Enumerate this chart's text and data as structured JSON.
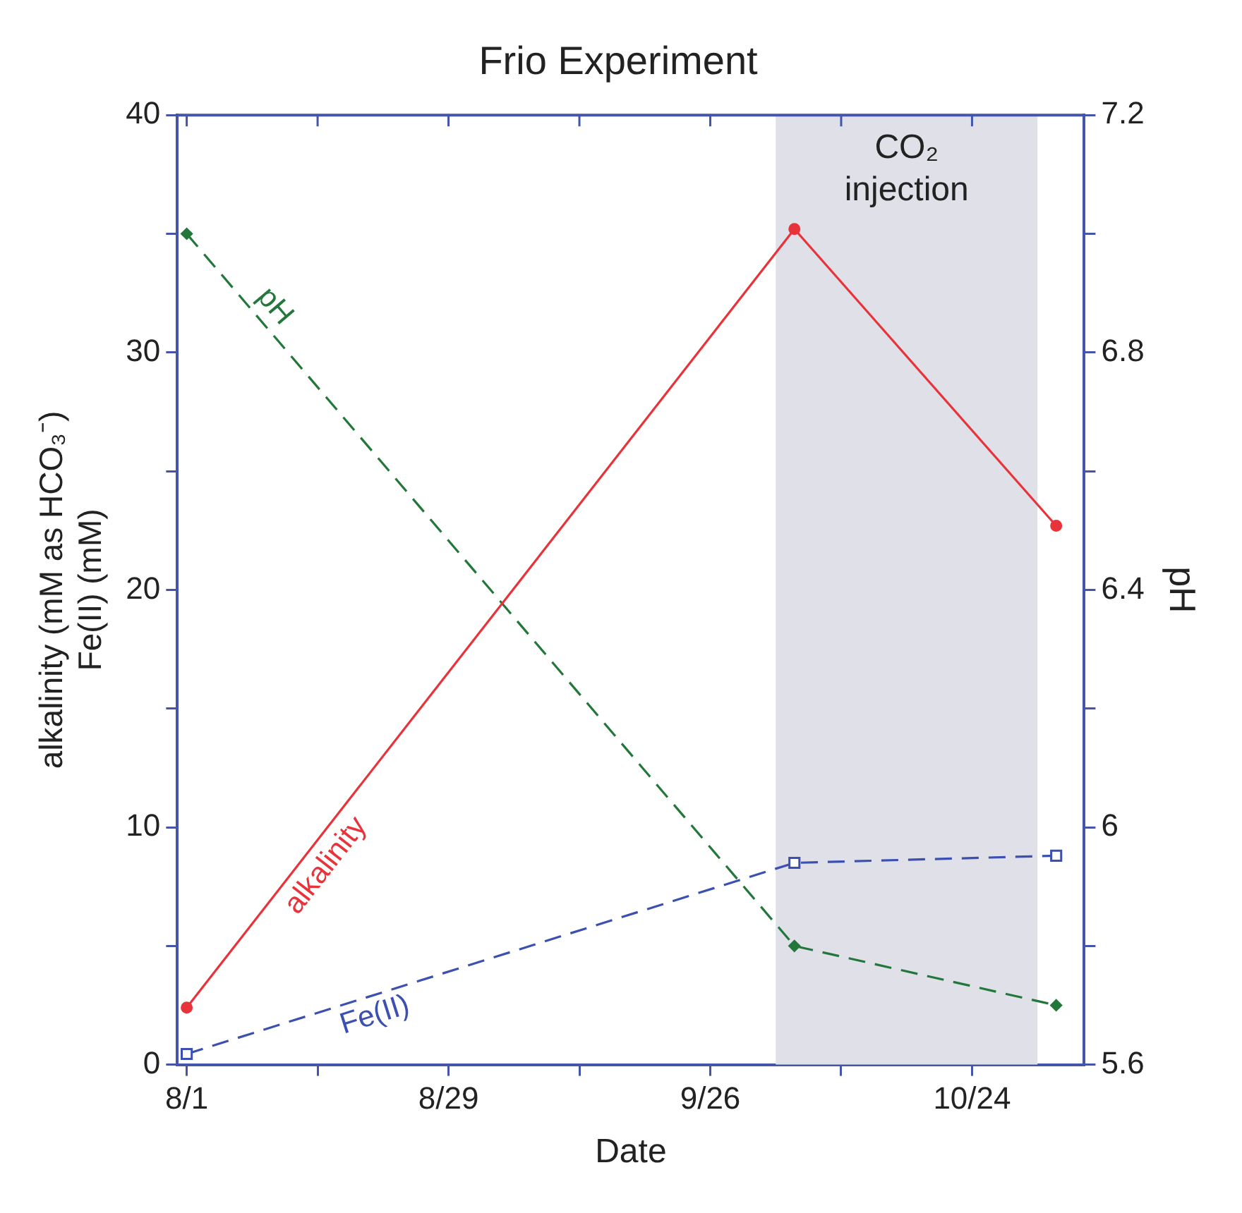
{
  "chart_data": {
    "type": "line",
    "title": "Frio Experiment",
    "xlabel": "Date",
    "ylabel": "alkalinity (mM as HCO₃⁻)\nFe(II) (mM)",
    "y2label": "pH",
    "xlim": [
      "--07-31",
      "--11-05"
    ],
    "xticks": [
      {
        "value": "--08-01",
        "label": "8/1"
      },
      {
        "value": "--08-15",
        "label": null
      },
      {
        "value": "--08-29",
        "label": "8/29"
      },
      {
        "value": "--09-12",
        "label": null
      },
      {
        "value": "--09-26",
        "label": "9/26"
      },
      {
        "value": "--10-10",
        "label": null
      },
      {
        "value": "--10-24",
        "label": "10/24"
      }
    ],
    "ylim": [
      0,
      40
    ],
    "yticks": [
      0,
      {
        "value": 5,
        "label": null
      },
      10,
      {
        "value": 15,
        "label": null
      },
      20,
      {
        "value": 25,
        "label": null
      },
      30,
      {
        "value": 35,
        "label": null
      },
      40
    ],
    "y2lim": [
      5.6,
      7.2
    ],
    "y2ticks": [
      5.6,
      {
        "value": 5.8,
        "label": null
      },
      {
        "value": 6,
        "label": "6"
      },
      {
        "value": 6.2,
        "label": null
      },
      6.4,
      {
        "value": 6.6,
        "label": null
      },
      6.8,
      {
        "value": 7,
        "label": null
      },
      7.2
    ],
    "x": [
      "--08-01",
      "--10-05",
      "--11-02"
    ],
    "series": [
      {
        "name": "alkalinity",
        "color": "#e8333a",
        "values": [
          2.4,
          35.2,
          22.7
        ],
        "marker": "circle",
        "line_style": "solid"
      },
      {
        "name": "Fe(II)",
        "color": "#3b50b0",
        "values": [
          0.45,
          8.5,
          8.8
        ],
        "marker": "square",
        "line_style": "dashed"
      },
      {
        "name": "pH",
        "color": "#23773a",
        "values": [
          7.0,
          5.8,
          5.7
        ],
        "axis": "y2",
        "marker": "diamond",
        "line_style": "dashed"
      }
    ],
    "bands": [
      {
        "axis": "x",
        "from": "--10-03",
        "to": "--10-31",
        "label": "CO₂\ninjection",
        "color": "#dfe0e8"
      }
    ],
    "grid": false,
    "legend": false
  }
}
